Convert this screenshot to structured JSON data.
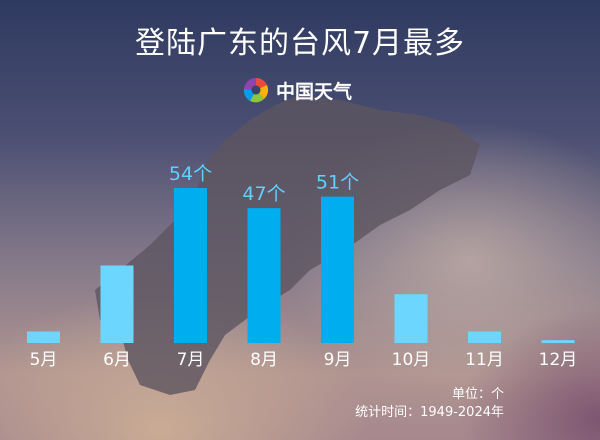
{
  "title": "登陆广东的台风7月最多",
  "logo": {
    "text": "中国天气",
    "icon": "pinwheel-logo-icon"
  },
  "notes": {
    "unit": "单位：个",
    "period": "统计时间：1949-2024年"
  },
  "colors": {
    "highlight": "#00aeef",
    "normal": "#6dd6ff",
    "label_highlight": "#5fd0ff"
  },
  "chart_data": {
    "type": "bar",
    "title": "登陆广东的台风7月最多",
    "categories": [
      "5月",
      "6月",
      "7月",
      "8月",
      "9月",
      "10月",
      "11月",
      "12月"
    ],
    "values": [
      4,
      27,
      54,
      47,
      51,
      17,
      4,
      1
    ],
    "data_labels": [
      "",
      "",
      "54个",
      "47个",
      "51个",
      "",
      "",
      ""
    ],
    "highlighted": [
      "7月",
      "8月",
      "9月"
    ],
    "unit": "个",
    "grid": false
  }
}
